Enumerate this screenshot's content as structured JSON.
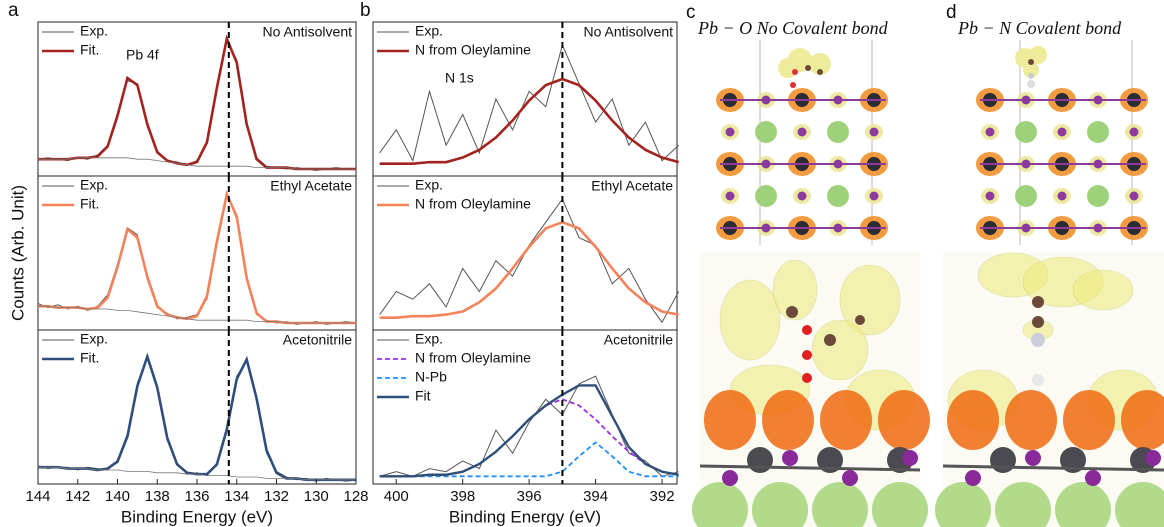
{
  "panel_labels": [
    "a",
    "b",
    "c",
    "d"
  ],
  "chart_data": [
    {
      "type": "line",
      "label": "No Antisolvent",
      "annotation": "Pb 4f",
      "y_label": "Counts (Arb. Unit)",
      "x": [
        144,
        143.5,
        143,
        142.5,
        142,
        141.5,
        141,
        140.5,
        140,
        139.5,
        139,
        138.5,
        138,
        137.5,
        137,
        136.5,
        136,
        135.5,
        135,
        134.5,
        134,
        133.5,
        133,
        132.5,
        132,
        131.5,
        131,
        130.5,
        130,
        129.5,
        129,
        128.5,
        128
      ],
      "xlim": [
        144,
        128
      ],
      "ylim": [
        0,
        1.1
      ],
      "vline": 134.4,
      "series": [
        {
          "name": "Exp.",
          "color": "#555555",
          "linewidth": 1,
          "values": [
            0.12,
            0.13,
            0.12,
            0.11,
            0.13,
            0.12,
            0.15,
            0.22,
            0.45,
            0.68,
            0.66,
            0.35,
            0.18,
            0.11,
            0.1,
            0.08,
            0.11,
            0.25,
            0.61,
            0.97,
            0.83,
            0.36,
            0.13,
            0.07,
            0.06,
            0.05,
            0.06,
            0.05,
            0.04,
            0.05,
            0.06,
            0.05,
            0.05
          ]
        },
        {
          "name": "Fit.",
          "color": "#a3231f",
          "linewidth": 2.6,
          "values": [
            0.12,
            0.12,
            0.12,
            0.12,
            0.13,
            0.13,
            0.14,
            0.21,
            0.43,
            0.7,
            0.65,
            0.37,
            0.17,
            0.11,
            0.09,
            0.08,
            0.1,
            0.24,
            0.63,
            0.98,
            0.81,
            0.37,
            0.12,
            0.06,
            0.06,
            0.06,
            0.05,
            0.05,
            0.05,
            0.05,
            0.05,
            0.05,
            0.05
          ]
        },
        {
          "color": "#777777",
          "linewidth": 0.8,
          "values": [
            0.12,
            0.12,
            0.12,
            0.12,
            0.13,
            0.13,
            0.13,
            0.13,
            0.13,
            0.13,
            0.12,
            0.12,
            0.11,
            0.1,
            0.09,
            0.08,
            0.07,
            0.07,
            0.07,
            0.07,
            0.07,
            0.07,
            0.06,
            0.06,
            0.06,
            0.06,
            0.05,
            0.05,
            0.05,
            0.05,
            0.05,
            0.05,
            0.05
          ]
        }
      ]
    },
    {
      "type": "line",
      "label": "Ethyl Acetate",
      "x": [
        144,
        143.5,
        143,
        142.5,
        142,
        141.5,
        141,
        140.5,
        140,
        139.5,
        139,
        138.5,
        138,
        137.5,
        137,
        136.5,
        136,
        135.5,
        135,
        134.5,
        134,
        133.5,
        133,
        132.5,
        132,
        131.5,
        131,
        130.5,
        130,
        129.5,
        129,
        128.5,
        128
      ],
      "xlim": [
        144,
        128
      ],
      "ylim": [
        0,
        1.1
      ],
      "vline": 134.4,
      "series": [
        {
          "name": "Exp.",
          "color": "#555555",
          "linewidth": 1,
          "values": [
            0.19,
            0.16,
            0.18,
            0.15,
            0.17,
            0.14,
            0.17,
            0.25,
            0.47,
            0.73,
            0.68,
            0.36,
            0.16,
            0.12,
            0.08,
            0.09,
            0.11,
            0.22,
            0.64,
            0.98,
            0.79,
            0.39,
            0.11,
            0.07,
            0.05,
            0.06,
            0.04,
            0.05,
            0.06,
            0.04,
            0.05,
            0.06,
            0.05
          ]
        },
        {
          "name": "Fit.",
          "color": "#f4825a",
          "linewidth": 2.6,
          "values": [
            0.17,
            0.17,
            0.16,
            0.16,
            0.16,
            0.15,
            0.16,
            0.23,
            0.45,
            0.72,
            0.66,
            0.38,
            0.17,
            0.11,
            0.09,
            0.08,
            0.1,
            0.24,
            0.63,
            0.97,
            0.81,
            0.37,
            0.12,
            0.06,
            0.06,
            0.05,
            0.05,
            0.05,
            0.05,
            0.05,
            0.05,
            0.05,
            0.05
          ]
        },
        {
          "color": "#777777",
          "linewidth": 0.8,
          "values": [
            0.17,
            0.17,
            0.16,
            0.16,
            0.16,
            0.15,
            0.15,
            0.15,
            0.14,
            0.14,
            0.13,
            0.12,
            0.11,
            0.1,
            0.09,
            0.08,
            0.07,
            0.07,
            0.07,
            0.07,
            0.07,
            0.07,
            0.06,
            0.06,
            0.06,
            0.05,
            0.05,
            0.05,
            0.05,
            0.05,
            0.05,
            0.05,
            0.05
          ]
        }
      ]
    },
    {
      "type": "line",
      "label": "Acetonitrile",
      "x_label": "Binding Energy (eV)",
      "x": [
        144,
        143.5,
        143,
        142.5,
        142,
        141.5,
        141,
        140.5,
        140,
        139.5,
        139,
        138.5,
        138,
        137.5,
        137,
        136.5,
        136,
        135.5,
        135,
        134.5,
        134,
        133.5,
        133,
        132.5,
        132,
        131.5,
        131,
        130.5,
        130,
        129.5,
        129,
        128.5,
        128
      ],
      "xlim": [
        144,
        128
      ],
      "ylim": [
        0,
        1.1
      ],
      "vline": 134.4,
      "xticks": [
        144,
        142,
        140,
        138,
        136,
        134,
        132,
        130,
        128
      ],
      "series": [
        {
          "name": "Exp.",
          "color": "#555555",
          "linewidth": 1,
          "values": [
            0.13,
            0.11,
            0.12,
            0.12,
            0.1,
            0.12,
            0.11,
            0.1,
            0.17,
            0.36,
            0.72,
            0.9,
            0.7,
            0.31,
            0.15,
            0.07,
            0.08,
            0.06,
            0.15,
            0.37,
            0.77,
            0.88,
            0.62,
            0.22,
            0.09,
            0.05,
            0.03,
            0.04,
            0.02,
            0.04,
            0.03,
            0.02,
            0.03
          ]
        },
        {
          "name": "Fit.",
          "color": "#2f4f7a",
          "linewidth": 2.6,
          "values": [
            0.12,
            0.12,
            0.12,
            0.11,
            0.11,
            0.11,
            0.1,
            0.11,
            0.16,
            0.34,
            0.7,
            0.91,
            0.69,
            0.33,
            0.14,
            0.08,
            0.07,
            0.07,
            0.14,
            0.39,
            0.75,
            0.89,
            0.61,
            0.24,
            0.08,
            0.04,
            0.04,
            0.03,
            0.03,
            0.03,
            0.03,
            0.03,
            0.03
          ]
        },
        {
          "color": "#777777",
          "linewidth": 0.8,
          "values": [
            0.12,
            0.12,
            0.12,
            0.11,
            0.11,
            0.11,
            0.1,
            0.1,
            0.1,
            0.09,
            0.09,
            0.09,
            0.08,
            0.08,
            0.08,
            0.07,
            0.07,
            0.06,
            0.06,
            0.06,
            0.05,
            0.05,
            0.05,
            0.04,
            0.04,
            0.04,
            0.04,
            0.03,
            0.03,
            0.03,
            0.03,
            0.03,
            0.03
          ]
        }
      ]
    },
    {
      "type": "line",
      "label": "No Antisolvent",
      "annotation": "N 1s",
      "x": [
        400.5,
        400,
        399.5,
        399,
        398.5,
        398,
        397.5,
        397,
        396.5,
        396,
        395.5,
        395,
        394.5,
        394,
        393.5,
        393,
        392.5,
        392,
        391.5
      ],
      "xlim": [
        400.7,
        391.55
      ],
      "ylim": [
        0,
        1
      ],
      "vline": 395,
      "series": [
        {
          "name": "Exp.",
          "color": "#555555",
          "linewidth": 1,
          "values": [
            0.15,
            0.3,
            0.1,
            0.55,
            0.2,
            0.4,
            0.15,
            0.5,
            0.3,
            0.55,
            0.45,
            0.85,
            0.6,
            0.35,
            0.5,
            0.2,
            0.35,
            0.1,
            0.2
          ]
        },
        {
          "name": "N from Oleylamine",
          "color": "#a3231f",
          "linewidth": 2.6,
          "values": [
            0.08,
            0.08,
            0.08,
            0.09,
            0.09,
            0.12,
            0.17,
            0.25,
            0.36,
            0.49,
            0.59,
            0.63,
            0.59,
            0.49,
            0.36,
            0.25,
            0.17,
            0.12,
            0.09
          ]
        }
      ]
    },
    {
      "type": "line",
      "label": "Ethyl Acetate",
      "x": [
        400.5,
        400,
        399.5,
        399,
        398.5,
        398,
        397.5,
        397,
        396.5,
        396,
        395.5,
        395,
        394.5,
        394,
        393.5,
        393,
        392.5,
        392,
        391.5
      ],
      "xlim": [
        400.7,
        391.55
      ],
      "ylim": [
        0,
        1
      ],
      "vline": 395,
      "series": [
        {
          "name": "Exp.",
          "color": "#555555",
          "linewidth": 1,
          "values": [
            0.1,
            0.25,
            0.2,
            0.3,
            0.15,
            0.4,
            0.25,
            0.45,
            0.35,
            0.55,
            0.7,
            0.85,
            0.6,
            0.55,
            0.3,
            0.4,
            0.2,
            0.05,
            0.25
          ]
        },
        {
          "name": "N from Oleylamine",
          "color": "#f4825a",
          "linewidth": 2.6,
          "values": [
            0.08,
            0.08,
            0.09,
            0.09,
            0.1,
            0.12,
            0.18,
            0.27,
            0.4,
            0.54,
            0.66,
            0.7,
            0.66,
            0.54,
            0.4,
            0.27,
            0.18,
            0.12,
            0.1
          ]
        }
      ]
    },
    {
      "type": "line",
      "label": "Acetonitrile",
      "x_label": "Binding Energy (eV)",
      "x": [
        400.5,
        400,
        399.5,
        399,
        398.5,
        398,
        397.5,
        397,
        396.5,
        396,
        395.5,
        395,
        394.5,
        394,
        393.5,
        393,
        392.5,
        392,
        391.5
      ],
      "xlim": [
        400.7,
        391.55
      ],
      "ylim": [
        0,
        1
      ],
      "vline": 395,
      "xticks": [
        400,
        398,
        396,
        394,
        392
      ],
      "series": [
        {
          "name": "Exp.",
          "color": "#555555",
          "linewidth": 1,
          "values": [
            0.05,
            0.08,
            0.05,
            0.1,
            0.08,
            0.15,
            0.1,
            0.35,
            0.2,
            0.4,
            0.55,
            0.45,
            0.65,
            0.7,
            0.45,
            0.2,
            0.15,
            0.05,
            0.08
          ]
        },
        {
          "name": "N from Oleylamine",
          "color": "#9b30e8",
          "linewidth": 1.8,
          "dash": true,
          "values": [
            0.05,
            0.05,
            0.05,
            0.06,
            0.06,
            0.08,
            0.13,
            0.21,
            0.31,
            0.42,
            0.51,
            0.55,
            0.51,
            0.42,
            0.31,
            0.21,
            0.13,
            0.08,
            0.06
          ]
        },
        {
          "name": "N-Pb",
          "color": "#1e90ff",
          "linewidth": 1.8,
          "dash": true,
          "values": [
            0.05,
            0.05,
            0.05,
            0.05,
            0.05,
            0.05,
            0.05,
            0.05,
            0.05,
            0.05,
            0.05,
            0.08,
            0.18,
            0.27,
            0.18,
            0.08,
            0.05,
            0.05,
            0.05
          ]
        },
        {
          "name": "Fit",
          "color": "#2f4f7a",
          "linewidth": 2.4,
          "values": [
            0.05,
            0.05,
            0.05,
            0.06,
            0.06,
            0.08,
            0.13,
            0.21,
            0.31,
            0.42,
            0.51,
            0.58,
            0.64,
            0.64,
            0.44,
            0.24,
            0.13,
            0.08,
            0.06
          ]
        }
      ]
    }
  ],
  "structures": [
    {
      "title": "Pb − O No Covalent bond"
    },
    {
      "title": "Pb − N Covalent bond"
    }
  ]
}
